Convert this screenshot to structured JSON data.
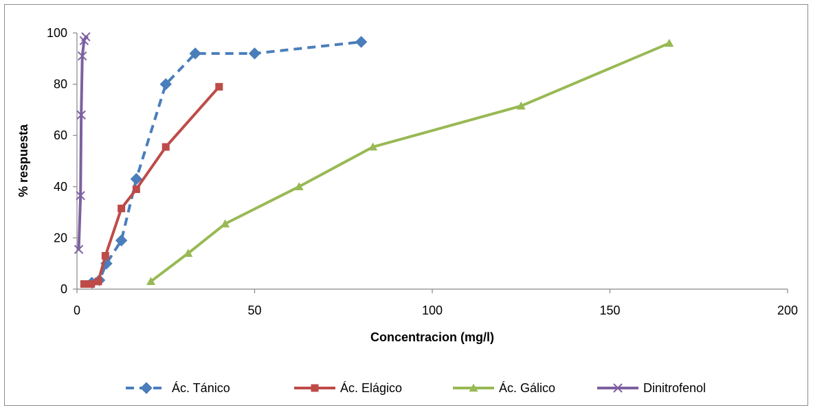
{
  "chart_data": {
    "type": "line",
    "title": "",
    "xlabel": "Concentracion (mg/l)",
    "ylabel": "% respuesta",
    "xlim": [
      0,
      200
    ],
    "ylim": [
      0,
      100
    ],
    "x_ticks": [
      "0",
      "50",
      "100",
      "150",
      "200"
    ],
    "y_ticks": [
      "0",
      "20",
      "40",
      "60",
      "80",
      "100"
    ],
    "grid": false,
    "legend_position": "bottom",
    "series": [
      {
        "name": "Ác. Tánico",
        "color": "#4a7ebb",
        "marker": "diamond",
        "dash": true,
        "x": [
          4.2,
          6.3,
          8.3,
          12.5,
          16.7,
          25,
          33.3,
          50,
          80
        ],
        "y": [
          2.5,
          3.5,
          10,
          19,
          43,
          80,
          92,
          92,
          96.5
        ]
      },
      {
        "name": "Ác. Elágico",
        "color": "#be4b48",
        "marker": "square",
        "dash": false,
        "x": [
          2,
          4,
          6,
          8,
          12.5,
          16.7,
          25,
          40
        ],
        "y": [
          2,
          2,
          3,
          13,
          31.5,
          39,
          55.5,
          79
        ]
      },
      {
        "name": "Ác. Gálico",
        "color": "#98b954",
        "marker": "triangle",
        "dash": false,
        "x": [
          20.8,
          31.3,
          41.7,
          62.5,
          83.3,
          125,
          166.7
        ],
        "y": [
          3,
          14,
          25.5,
          40,
          55.5,
          71.5,
          96
        ]
      },
      {
        "name": "Dinitrofenol",
        "color": "#7d60a0",
        "marker": "x",
        "dash": false,
        "x": [
          0.5,
          1,
          1.2,
          1.5,
          2,
          2.5
        ],
        "y": [
          15.5,
          36.5,
          68,
          91,
          97,
          98.5
        ]
      }
    ]
  }
}
